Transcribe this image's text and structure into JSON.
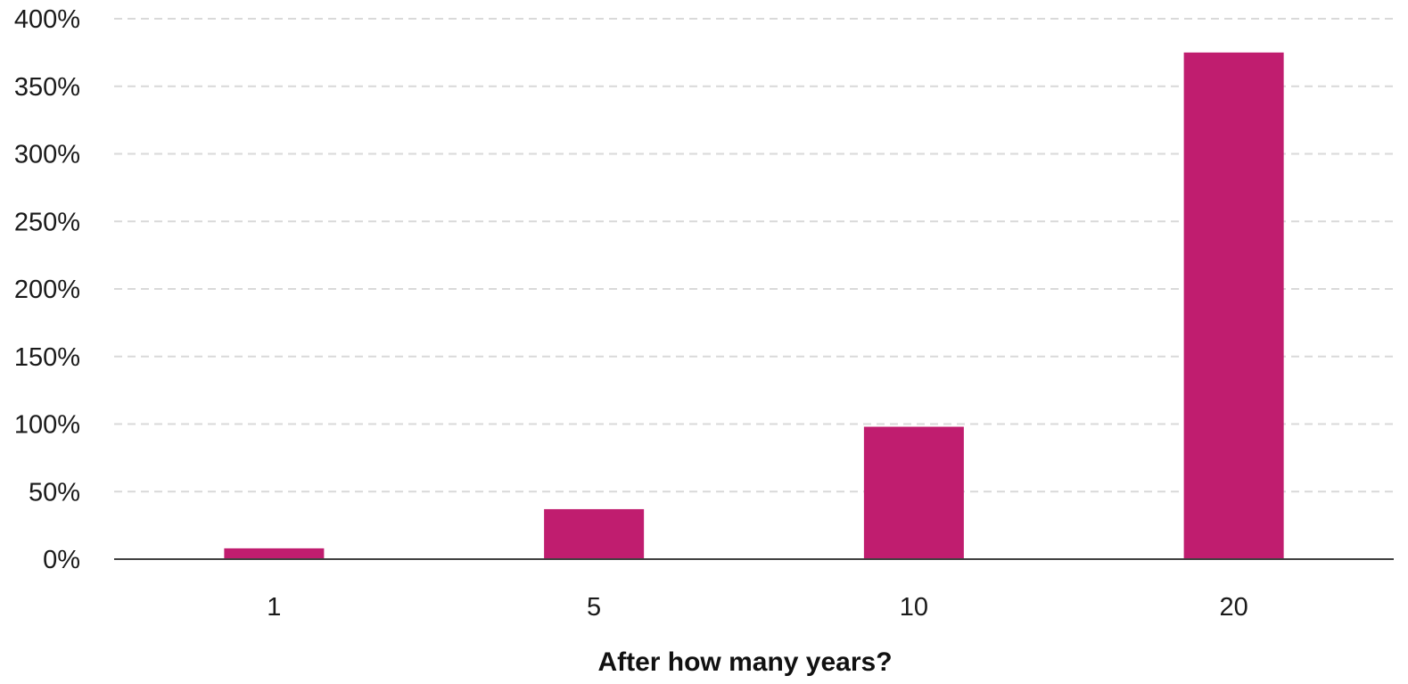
{
  "chart_data": {
    "type": "bar",
    "title": "",
    "xlabel": "After how many years?",
    "ylabel": "",
    "categories": [
      "1",
      "5",
      "10",
      "20"
    ],
    "values": [
      8,
      37,
      98,
      375
    ],
    "ylim": [
      0,
      400
    ],
    "yticks": [
      0,
      50,
      100,
      150,
      200,
      250,
      300,
      350,
      400
    ],
    "ytick_labels": [
      "0%",
      "50%",
      "100%",
      "150%",
      "200%",
      "250%",
      "300%",
      "350%",
      "400%"
    ],
    "grid": true,
    "grid_style": "dashed",
    "legend": "none",
    "bar_color": "#c01d6f"
  }
}
